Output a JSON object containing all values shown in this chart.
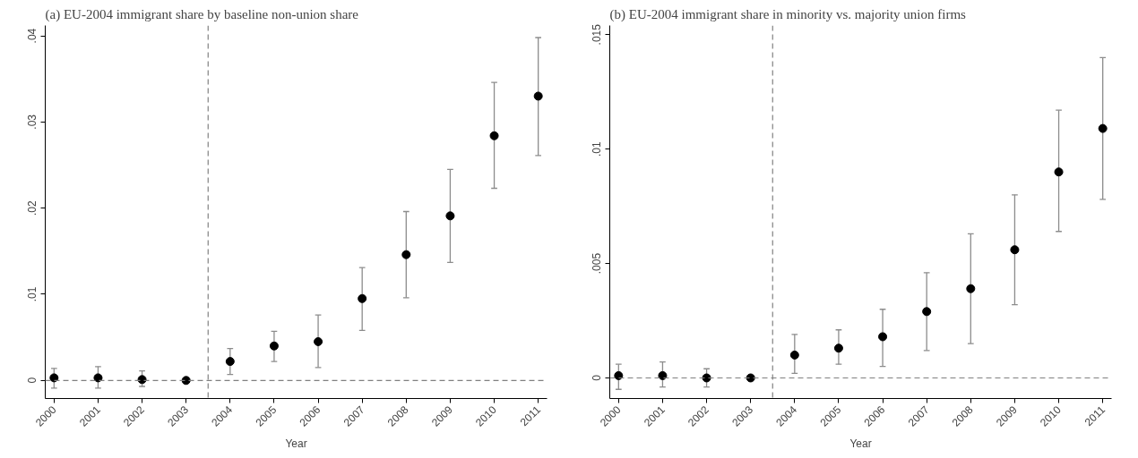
{
  "chart_data": [
    {
      "type": "scatter",
      "title": "(a) EU-2004 immigrant share by baseline non-union share",
      "xlabel": "Year",
      "x": [
        2000,
        2001,
        2002,
        2003,
        2004,
        2005,
        2006,
        2007,
        2008,
        2009,
        2010,
        2011
      ],
      "series": [
        {
          "color": "#000000",
          "values": [
            0.0003,
            0.0003,
            0.0001,
            0.0,
            0.0022,
            0.004,
            0.0045,
            0.0095,
            0.0146,
            0.0191,
            0.0284,
            0.033
          ],
          "errors": [
            [
              -0.0009,
              0.0014
            ],
            [
              -0.0009,
              0.0016
            ],
            [
              -0.0007,
              0.0011
            ],
            null,
            [
              0.0007,
              0.0037
            ],
            [
              0.0022,
              0.0057
            ],
            [
              0.0015,
              0.0076
            ],
            [
              0.0058,
              0.0131
            ],
            [
              0.0096,
              0.0196
            ],
            [
              0.0137,
              0.0245
            ],
            [
              0.0223,
              0.0346
            ],
            [
              0.0261,
              0.0398
            ]
          ]
        }
      ],
      "xlim": [
        1999.8,
        2011.2
      ],
      "xticks": [
        2000,
        2001,
        2002,
        2003,
        2004,
        2005,
        2006,
        2007,
        2008,
        2009,
        2010,
        2011
      ],
      "ylim": [
        -0.0021,
        0.0412
      ],
      "yticks": [
        0,
        {
          "value": 0.01,
          "label": ".01"
        },
        {
          "value": 0.02,
          "label": ".02"
        },
        {
          "value": 0.03,
          "label": ".03"
        },
        {
          "value": 0.04,
          "label": ".04"
        }
      ],
      "ref_lines": [
        {
          "axis": "x",
          "value": 2003.5,
          "color": "#808080",
          "line_style": "dashed"
        },
        {
          "axis": "y",
          "value": 0,
          "color": "#808080",
          "line_style": "dashed"
        }
      ],
      "grid": false,
      "marker": "circle"
    },
    {
      "type": "scatter",
      "title": "(b) EU-2004 immigrant share in minority vs. majority union firms",
      "xlabel": "Year",
      "x": [
        2000,
        2001,
        2002,
        2003,
        2004,
        2005,
        2006,
        2007,
        2008,
        2009,
        2010,
        2011
      ],
      "series": [
        {
          "color": "#000000",
          "values": [
            0.0001,
            0.0001,
            0.0,
            0.0,
            0.001,
            0.0013,
            0.0018,
            0.0029,
            0.0039,
            0.0056,
            0.009,
            0.0109
          ],
          "errors": [
            [
              -0.0005,
              0.0006
            ],
            [
              -0.0004,
              0.0007
            ],
            [
              -0.0004,
              0.0004
            ],
            null,
            [
              0.0002,
              0.0019
            ],
            [
              0.0006,
              0.0021
            ],
            [
              0.0005,
              0.003
            ],
            [
              0.0012,
              0.0046
            ],
            [
              0.0015,
              0.0063
            ],
            [
              0.0032,
              0.008
            ],
            [
              0.0064,
              0.0117
            ],
            [
              0.0078,
              0.014
            ]
          ]
        }
      ],
      "xlim": [
        1999.8,
        2011.2
      ],
      "xticks": [
        2000,
        2001,
        2002,
        2003,
        2004,
        2005,
        2006,
        2007,
        2008,
        2009,
        2010,
        2011
      ],
      "ylim": [
        -0.0009,
        0.0154
      ],
      "yticks": [
        0,
        {
          "value": 0.005,
          "label": ".005"
        },
        {
          "value": 0.01,
          "label": ".01"
        },
        {
          "value": 0.015,
          "label": ".015"
        }
      ],
      "ref_lines": [
        {
          "axis": "x",
          "value": 2003.5,
          "color": "#808080",
          "line_style": "dashed"
        },
        {
          "axis": "y",
          "value": 0,
          "color": "#808080",
          "line_style": "dashed"
        }
      ],
      "grid": false,
      "marker": "circle"
    }
  ]
}
